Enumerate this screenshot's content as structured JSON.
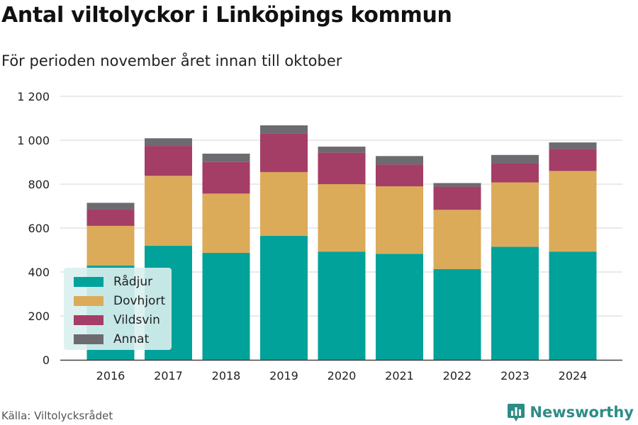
{
  "title": "Antal viltolyckor i Linköpings kommun",
  "subtitle": "För perioden november året innan till oktober",
  "source": "Källa: Viltolycksrådet",
  "brand": "Newsworthy",
  "colors": {
    "radjur": "#00a29a",
    "dovhjort": "#dbab5a",
    "vildsvin": "#a53e66",
    "annat": "#6c6c70",
    "grid": "#dddddd",
    "brand": "#2e8c86"
  },
  "icons": {
    "brand": "bar-chart-icon"
  },
  "chart_data": {
    "type": "bar",
    "stacked": true,
    "categories": [
      "2016",
      "2017",
      "2018",
      "2019",
      "2020",
      "2021",
      "2022",
      "2023",
      "2024"
    ],
    "series": [
      {
        "name": "Rådjur",
        "color": "#00a29a",
        "values": [
          430,
          520,
          487,
          565,
          493,
          483,
          413,
          515,
          493
        ]
      },
      {
        "name": "Dovhjort",
        "color": "#dbab5a",
        "values": [
          180,
          318,
          270,
          290,
          307,
          307,
          270,
          293,
          367
        ]
      },
      {
        "name": "Vildsvin",
        "color": "#a53e66",
        "values": [
          74,
          136,
          144,
          176,
          144,
          100,
          106,
          87,
          100
        ]
      },
      {
        "name": "Annat",
        "color": "#6c6c70",
        "values": [
          31,
          35,
          38,
          37,
          27,
          38,
          16,
          38,
          30
        ]
      }
    ],
    "yticks": [
      0,
      200,
      400,
      600,
      800,
      1000,
      1200
    ],
    "ytick_labels": [
      "0",
      "200",
      "400",
      "600",
      "800",
      "1 000",
      "1 200"
    ],
    "ylim": [
      0,
      1200
    ],
    "grid": true,
    "legend_position": "bottom-left"
  }
}
